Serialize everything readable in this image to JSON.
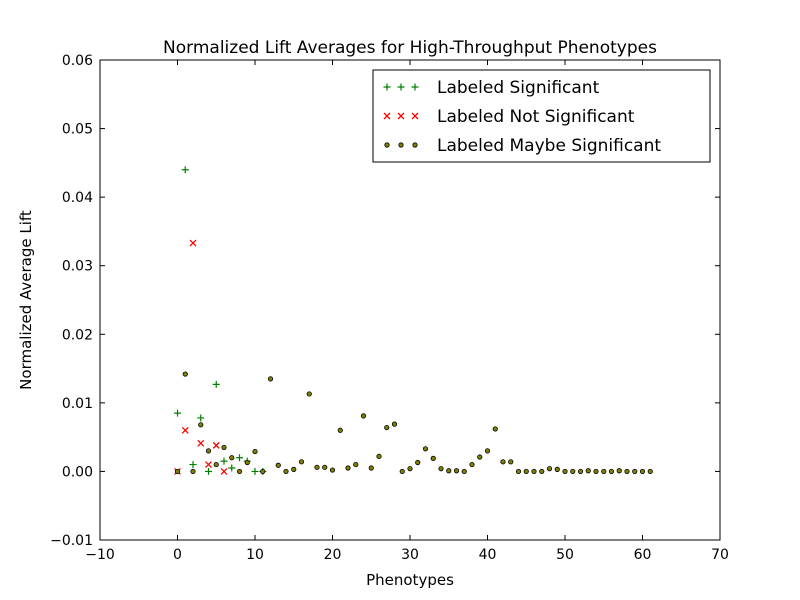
{
  "chart_data": {
    "type": "scatter",
    "title": "Normalized Lift Averages for High-Throughput Phenotypes",
    "xlabel": "Phenotypes",
    "ylabel": "Normalized Average Lift",
    "xlim": [
      -10,
      70
    ],
    "ylim": [
      -0.01,
      0.06
    ],
    "xticks": [
      -10,
      0,
      10,
      20,
      30,
      40,
      50,
      60,
      70
    ],
    "yticks": [
      -0.01,
      0.0,
      0.01,
      0.02,
      0.03,
      0.04,
      0.05,
      0.06
    ],
    "xtick_labels": [
      "−10",
      "0",
      "10",
      "20",
      "30",
      "40",
      "50",
      "60",
      "70"
    ],
    "ytick_labels": [
      "−0.01",
      "0.00",
      "0.01",
      "0.02",
      "0.03",
      "0.04",
      "0.05",
      "0.06"
    ],
    "grid": false,
    "legend": "top-right",
    "series": [
      {
        "name": "Labeled Significant",
        "marker": "plus",
        "color": "#008000",
        "points": [
          [
            0,
            0.0085
          ],
          [
            1,
            0.044
          ],
          [
            2,
            0.001
          ],
          [
            3,
            0.0078
          ],
          [
            4,
            0.0
          ],
          [
            5,
            0.0127
          ],
          [
            6,
            0.0015
          ],
          [
            7,
            0.0005
          ],
          [
            8,
            0.002
          ],
          [
            9,
            0.0015
          ],
          [
            10,
            0.0
          ],
          [
            11,
            0.0
          ]
        ]
      },
      {
        "name": "Labeled Not Significant",
        "marker": "x",
        "color": "#ff0000",
        "points": [
          [
            0,
            0.0
          ],
          [
            1,
            0.006
          ],
          [
            2,
            0.0333
          ],
          [
            3,
            0.0041
          ],
          [
            4,
            0.001
          ],
          [
            5,
            0.0038
          ],
          [
            6,
            0.0
          ]
        ]
      },
      {
        "name": "Labeled Maybe Significant",
        "marker": "dot",
        "color": "#808000",
        "points": [
          [
            0,
            0.0
          ],
          [
            1,
            0.0142
          ],
          [
            2,
            0.0
          ],
          [
            3,
            0.0068
          ],
          [
            4,
            0.003
          ],
          [
            5,
            0.001
          ],
          [
            6,
            0.0035
          ],
          [
            7,
            0.002
          ],
          [
            8,
            0.0
          ],
          [
            9,
            0.0013
          ],
          [
            10,
            0.0029
          ],
          [
            11,
            0.0
          ],
          [
            12,
            0.0135
          ],
          [
            13,
            0.0009
          ],
          [
            14,
            0.0
          ],
          [
            15,
            0.0003
          ],
          [
            16,
            0.0014
          ],
          [
            17,
            0.0113
          ],
          [
            18,
            0.0006
          ],
          [
            19,
            0.0006
          ],
          [
            20,
            0.0002
          ],
          [
            21,
            0.006
          ],
          [
            22,
            0.0005
          ],
          [
            23,
            0.001
          ],
          [
            24,
            0.0081
          ],
          [
            25,
            0.0005
          ],
          [
            26,
            0.0022
          ],
          [
            27,
            0.0064
          ],
          [
            28,
            0.0069
          ],
          [
            29,
            0.0
          ],
          [
            30,
            0.0004
          ],
          [
            31,
            0.0013
          ],
          [
            32,
            0.0033
          ],
          [
            33,
            0.0019
          ],
          [
            34,
            0.0004
          ],
          [
            35,
            0.0001
          ],
          [
            36,
            0.0001
          ],
          [
            37,
            0.0
          ],
          [
            38,
            0.001
          ],
          [
            39,
            0.0021
          ],
          [
            40,
            0.003
          ],
          [
            41,
            0.0062
          ],
          [
            42,
            0.0014
          ],
          [
            43,
            0.0014
          ],
          [
            44,
            0.0
          ],
          [
            45,
            0.0
          ],
          [
            46,
            0.0
          ],
          [
            47,
            0.0
          ],
          [
            48,
            0.0004
          ],
          [
            49,
            0.0003
          ],
          [
            50,
            0.0
          ],
          [
            51,
            0.0
          ],
          [
            52,
            0.0
          ],
          [
            53,
            0.0001
          ],
          [
            54,
            0.0
          ],
          [
            55,
            0.0
          ],
          [
            56,
            0.0
          ],
          [
            57,
            0.0001
          ],
          [
            58,
            0.0
          ],
          [
            59,
            0.0
          ],
          [
            60,
            0.0
          ],
          [
            61,
            0.0
          ]
        ]
      }
    ]
  }
}
